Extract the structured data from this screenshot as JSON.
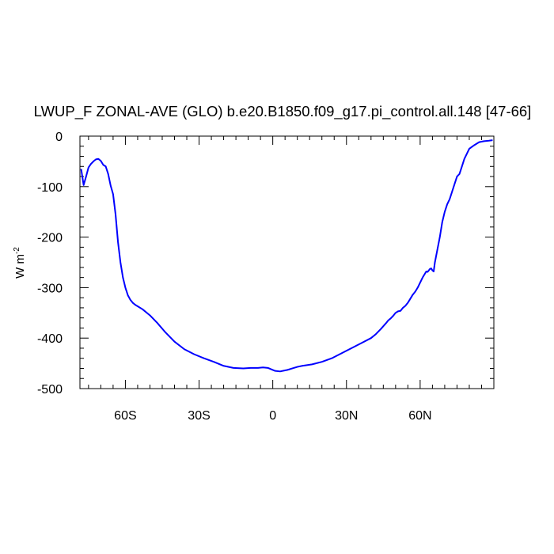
{
  "chart_data": {
    "type": "line",
    "title": "LWUP_F ZONAL-AVE (GLO) b.e20.B1850.f09_g17.pi_control.all.148 [47-66]",
    "xlabel": "",
    "ylabel": "W m",
    "ylabel_exponent": "-2",
    "xlim": [
      -78.5,
      90
    ],
    "ylim": [
      -500,
      0
    ],
    "x_ticks": [
      {
        "value": -60,
        "label": "60S"
      },
      {
        "value": -30,
        "label": "30S"
      },
      {
        "value": 0,
        "label": "0"
      },
      {
        "value": 30,
        "label": "30N"
      },
      {
        "value": 60,
        "label": "60N"
      }
    ],
    "y_ticks": [
      {
        "value": 0,
        "label": "0"
      },
      {
        "value": -100,
        "label": "-100"
      },
      {
        "value": -200,
        "label": "-200"
      },
      {
        "value": -300,
        "label": "-300"
      },
      {
        "value": -400,
        "label": "-400"
      },
      {
        "value": -500,
        "label": "-500"
      }
    ],
    "grid": false,
    "line_color": "#0000ff",
    "series": [
      {
        "x": [
          -78,
          -77,
          -76,
          -75,
          -74,
          -73,
          -72,
          -71,
          -70,
          -69,
          -68,
          -67,
          -66,
          -65,
          -64,
          -63,
          -62,
          -61,
          -60,
          -59,
          -58,
          -57,
          -56,
          -55,
          -53,
          -50,
          -47,
          -44,
          -40,
          -36,
          -32,
          -28,
          -24,
          -20,
          -16,
          -12,
          -9,
          -6,
          -4,
          -2,
          0,
          1,
          3,
          5,
          6,
          8,
          10,
          12,
          16,
          20,
          24,
          28,
          32,
          36,
          40,
          42,
          44,
          46,
          47,
          48,
          49,
          50,
          51,
          52,
          53,
          54,
          55,
          56,
          57,
          58,
          59,
          60,
          61,
          62,
          62.5,
          63,
          63.5,
          64,
          64.5,
          65,
          65.5,
          66,
          67,
          68,
          69,
          70,
          71,
          72,
          73,
          74,
          75,
          76,
          77,
          78,
          79,
          80,
          82,
          84,
          86,
          88,
          89.5
        ],
        "y": [
          -65,
          -97,
          -80,
          -62,
          -55,
          -50,
          -46,
          -45,
          -49,
          -57,
          -60,
          -75,
          -98,
          -115,
          -155,
          -210,
          -250,
          -280,
          -300,
          -315,
          -324,
          -330,
          -334,
          -337,
          -343,
          -355,
          -370,
          -387,
          -407,
          -422,
          -432,
          -440,
          -447,
          -455,
          -459,
          -460,
          -459,
          -459,
          -458,
          -459,
          -463,
          -465,
          -466,
          -464,
          -463,
          -460,
          -457,
          -455,
          -452,
          -447,
          -440,
          -430,
          -420,
          -410,
          -400,
          -392,
          -382,
          -371,
          -365,
          -361,
          -356,
          -350,
          -347,
          -346,
          -340,
          -336,
          -330,
          -322,
          -314,
          -308,
          -300,
          -290,
          -280,
          -272,
          -268,
          -269,
          -266,
          -263,
          -262,
          -266,
          -268,
          -250,
          -225,
          -200,
          -170,
          -150,
          -135,
          -125,
          -110,
          -95,
          -80,
          -75,
          -60,
          -45,
          -35,
          -25,
          -18,
          -12,
          -10,
          -9,
          -8
        ]
      }
    ]
  }
}
